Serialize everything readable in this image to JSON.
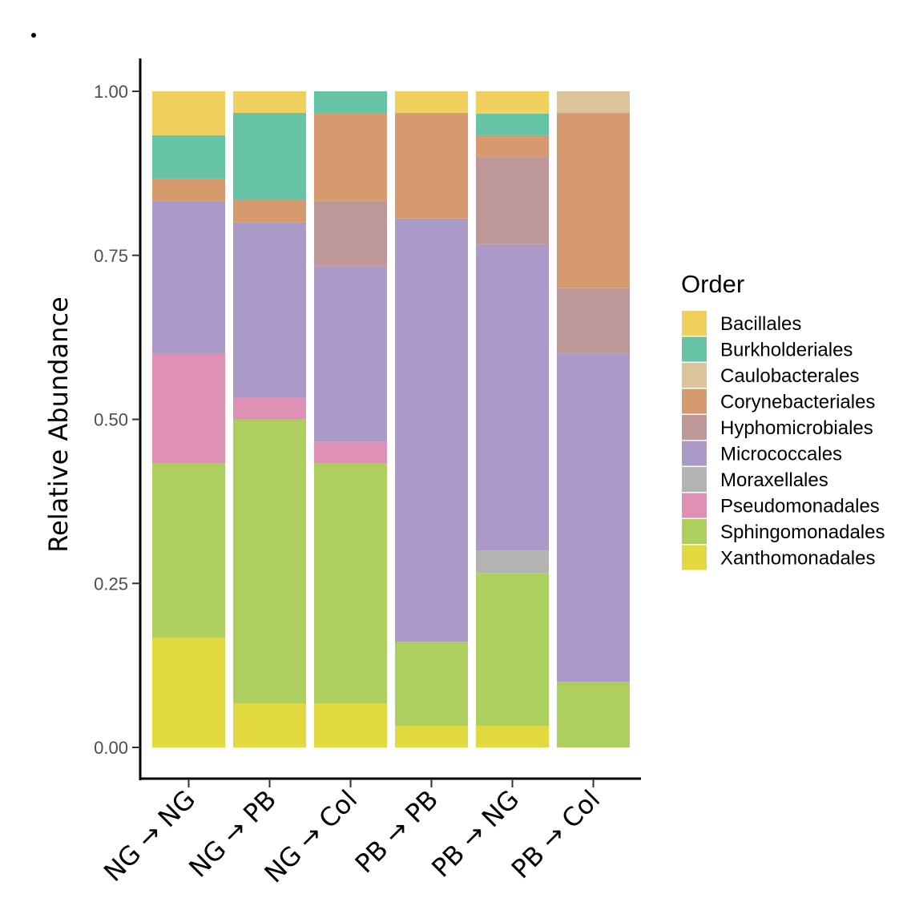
{
  "chart_data": {
    "type": "bar",
    "stacked": true,
    "ylabel": "Relative Abundance",
    "xlabel": "",
    "ylim": [
      0,
      1
    ],
    "yticks": [
      "0.00",
      "0.25",
      "0.50",
      "0.75",
      "1.00"
    ],
    "ytick_values": [
      0,
      0.25,
      0.5,
      0.75,
      1
    ],
    "categories": [
      "NG → NG",
      "NG → PB",
      "NG → Col",
      "PB → PB",
      "PB → NG",
      "PB → Col"
    ],
    "legend": {
      "title": "Order",
      "placement": "right"
    },
    "series": [
      {
        "name": "Xanthomonadales",
        "color": "#E2D83F",
        "values": [
          0.167,
          0.067,
          0.067,
          0.033,
          0.033,
          0.0
        ]
      },
      {
        "name": "Sphingomonadales",
        "color": "#ADCF60",
        "values": [
          0.266,
          0.433,
          0.366,
          0.128,
          0.233,
          0.1
        ]
      },
      {
        "name": "Pseudomonadales",
        "color": "#DE90B5",
        "values": [
          0.167,
          0.033,
          0.033,
          0.0,
          0.0,
          0.0
        ]
      },
      {
        "name": "Moraxellales",
        "color": "#B3B3B3",
        "values": [
          0.0,
          0.0,
          0.0,
          0.0,
          0.034,
          0.0
        ]
      },
      {
        "name": "Micrococcales",
        "color": "#AB9AC8",
        "values": [
          0.233,
          0.267,
          0.267,
          0.645,
          0.467,
          0.5
        ]
      },
      {
        "name": "Hyphomicrobiales",
        "color": "#BE9898",
        "values": [
          0.0,
          0.0,
          0.1,
          0.0,
          0.133,
          0.1
        ]
      },
      {
        "name": "Corynebacteriales",
        "color": "#D79A6E",
        "values": [
          0.034,
          0.034,
          0.133,
          0.161,
          0.033,
          0.267
        ]
      },
      {
        "name": "Caulobacterales",
        "color": "#DCC39C",
        "values": [
          0.0,
          0.0,
          0.0,
          0.0,
          0.0,
          0.033
        ]
      },
      {
        "name": "Burkholderiales",
        "color": "#66C3A5",
        "values": [
          0.066,
          0.133,
          0.034,
          0.0,
          0.033,
          0.0
        ]
      },
      {
        "name": "Bacillales",
        "color": "#F2D060",
        "values": [
          0.067,
          0.033,
          0.0,
          0.033,
          0.034,
          0.0
        ]
      }
    ],
    "legend_order": [
      "Bacillales",
      "Burkholderiales",
      "Caulobacterales",
      "Corynebacteriales",
      "Hyphomicrobiales",
      "Micrococcales",
      "Moraxellales",
      "Pseudomonadales",
      "Sphingomonadales",
      "Xanthomonadales"
    ]
  }
}
